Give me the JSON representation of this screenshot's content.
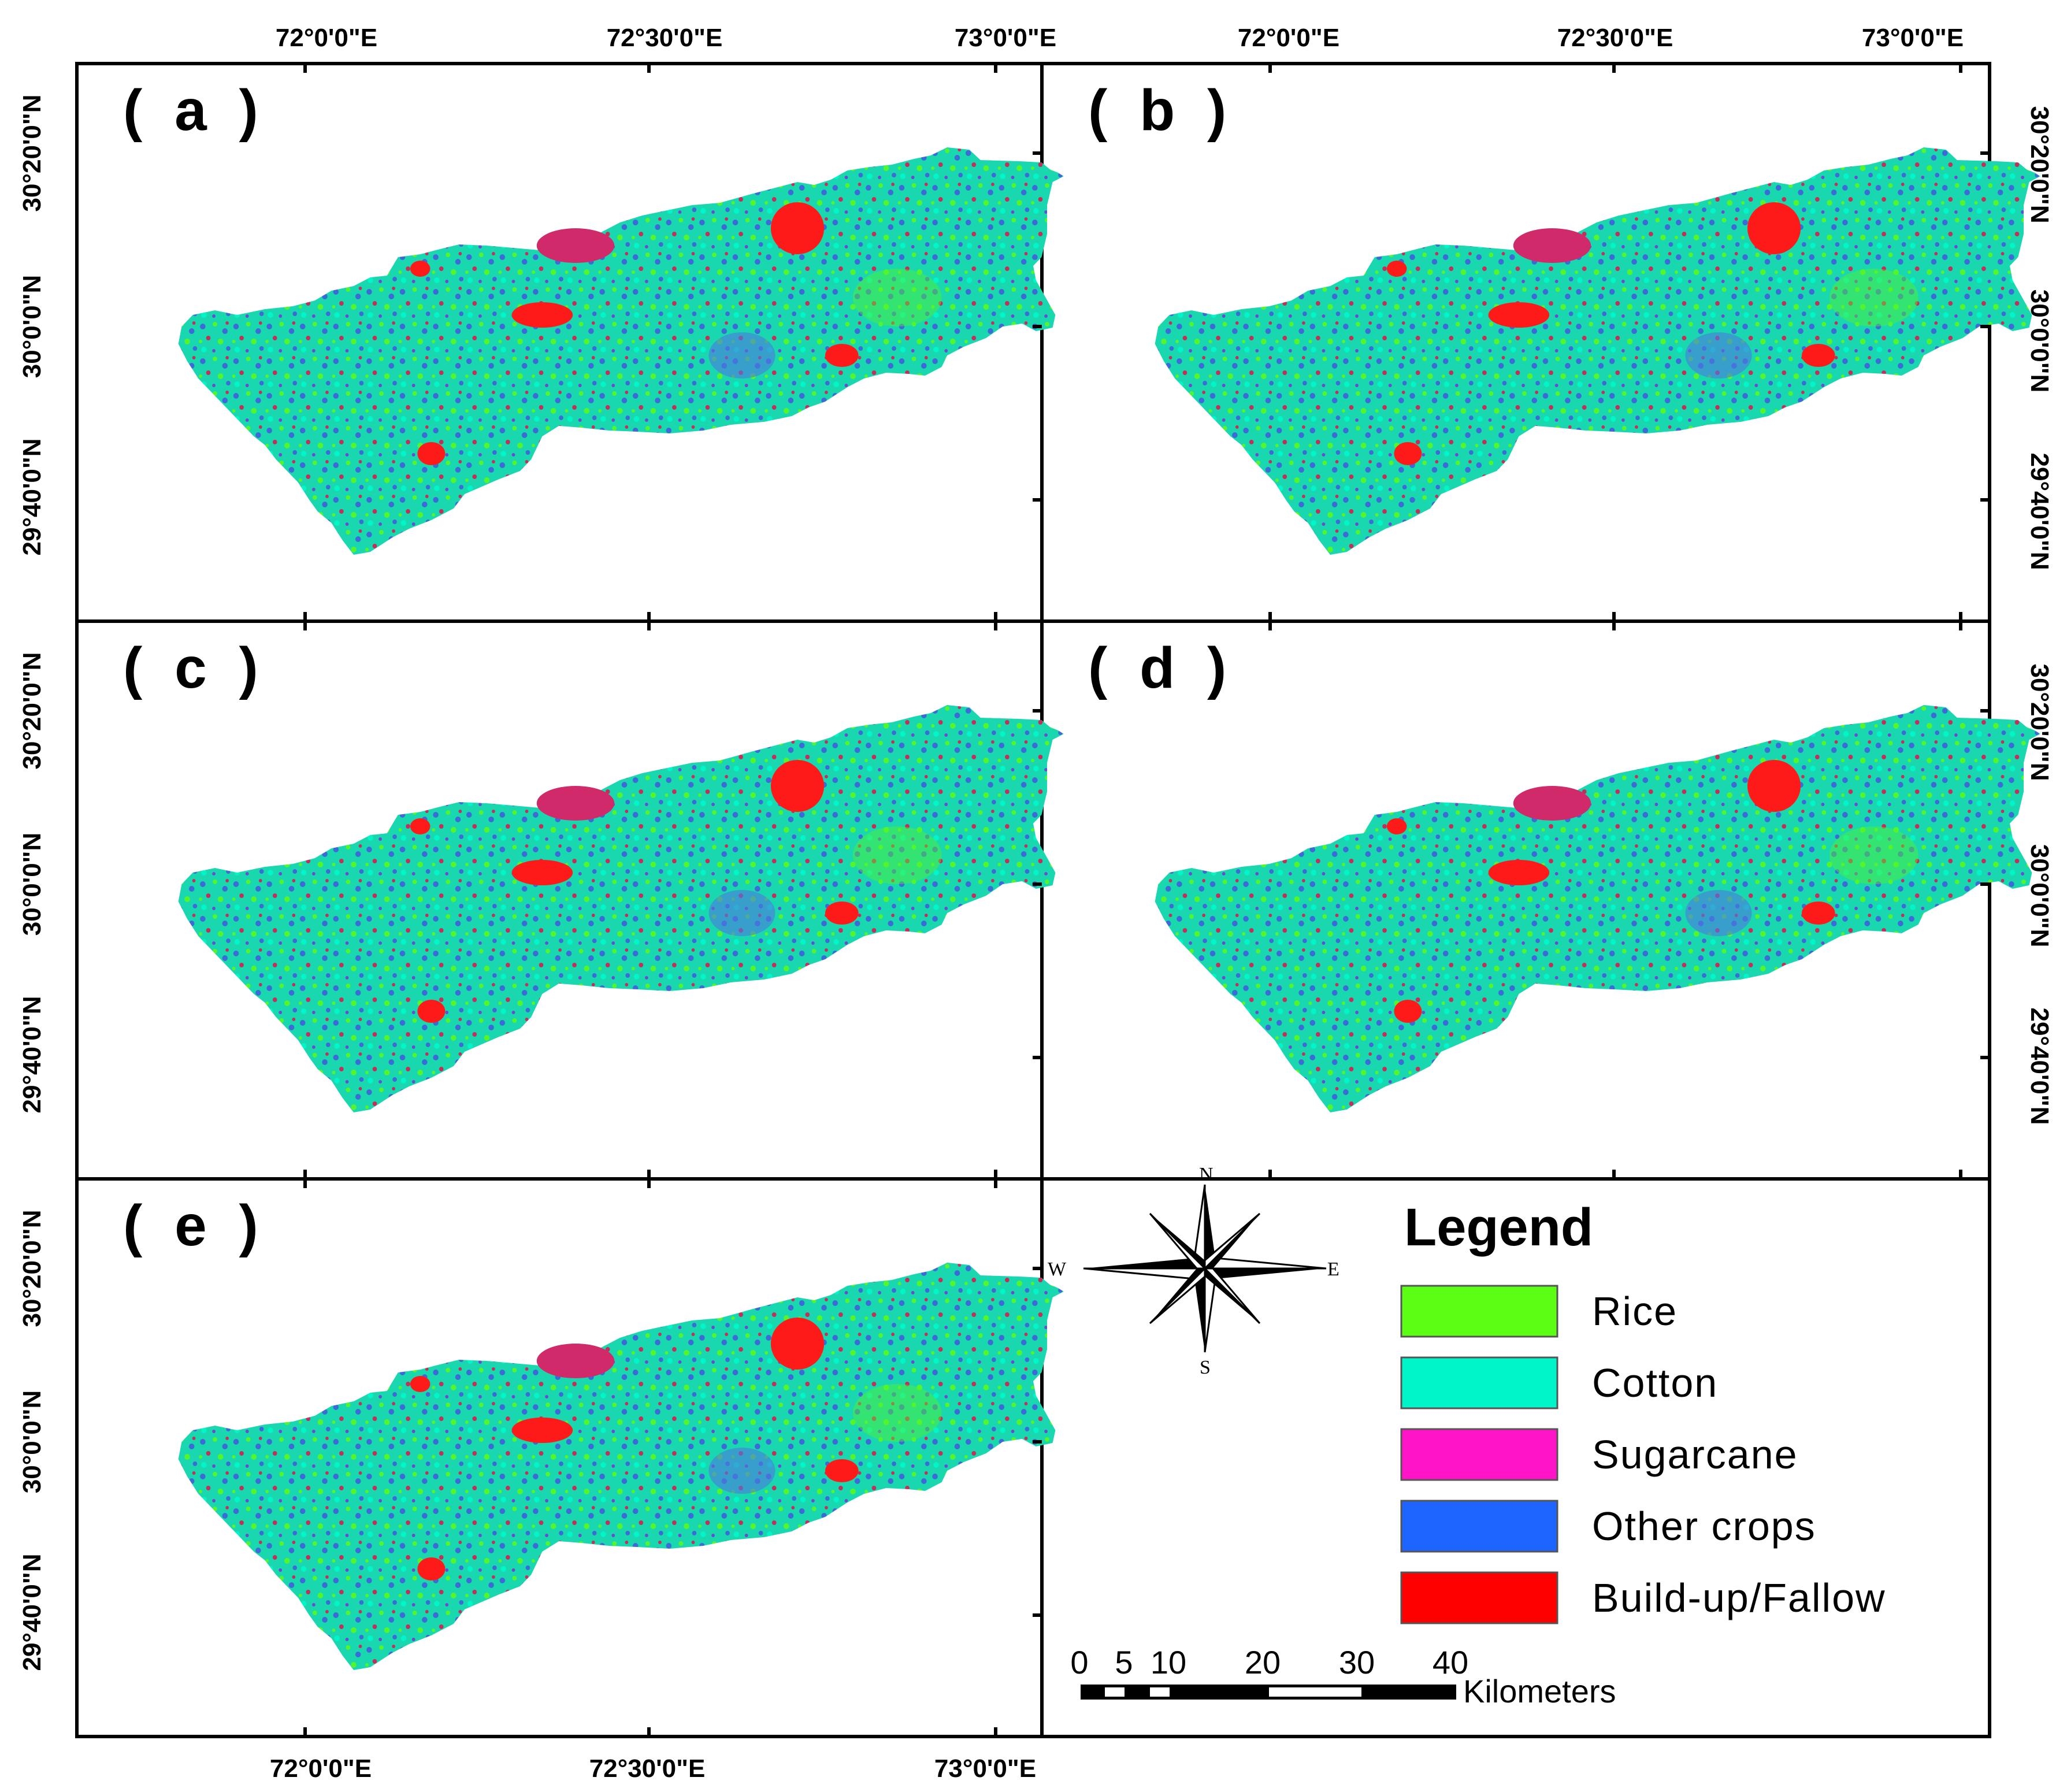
{
  "panels": [
    {
      "id": "a",
      "label": "( a )"
    },
    {
      "id": "b",
      "label": "( b )"
    },
    {
      "id": "c",
      "label": "( c )"
    },
    {
      "id": "d",
      "label": "( d )"
    },
    {
      "id": "e",
      "label": "( e )"
    }
  ],
  "axes": {
    "longitude_labels": [
      "72°0'0\"E",
      "72°30'0\"E",
      "73°0'0\"E"
    ],
    "latitude_labels": [
      "30°20'0\"N",
      "30°0'0\"N",
      "29°40'0\"N"
    ]
  },
  "compass": {
    "n": "N",
    "s": "S",
    "e": "E",
    "w": "W"
  },
  "legend": {
    "title": "Legend",
    "items": [
      {
        "label": "Rice",
        "color": "#5cff14"
      },
      {
        "label": "Cotton",
        "color": "#00f5c8"
      },
      {
        "label": "Sugarcane",
        "color": "#ff14c8"
      },
      {
        "label": "Other crops",
        "color": "#1e64ff"
      },
      {
        "label": "Build-up/Fallow",
        "color": "#ff0000"
      }
    ]
  },
  "scale_bar": {
    "ticks": [
      "0",
      "5",
      "10",
      "20",
      "30",
      "40"
    ],
    "unit": "Kilometers"
  }
}
